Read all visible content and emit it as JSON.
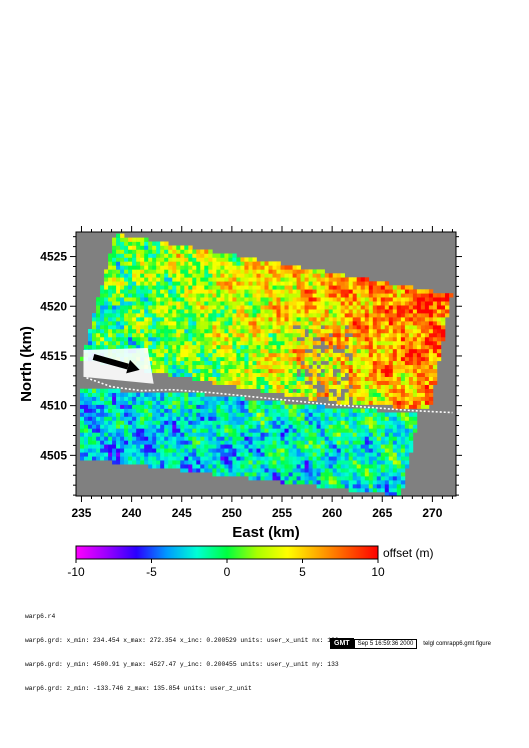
{
  "chart_data": {
    "type": "heatmap",
    "title": "",
    "xlabel": "East (km)",
    "ylabel": "North (km)",
    "xlim": [
      234.454,
      272.354
    ],
    "ylim": [
      4500.91,
      4527.47
    ],
    "xticks": [
      235,
      240,
      245,
      250,
      255,
      260,
      265,
      270
    ],
    "yticks": [
      4505,
      4510,
      4515,
      4520,
      4525
    ],
    "x_tick_labels": [
      "235",
      "240",
      "245",
      "250",
      "255",
      "260",
      "265",
      "270"
    ],
    "y_tick_labels": [
      "4505",
      "4510",
      "4515",
      "4520",
      "4525"
    ],
    "grid": false,
    "fault_trace": {
      "x": [
        235.5,
        238,
        241,
        244,
        248,
        252,
        256,
        260,
        264,
        268,
        272
      ],
      "y": [
        4512.8,
        4511.9,
        4511.5,
        4511.6,
        4511.3,
        4510.9,
        4510.5,
        4510.1,
        4509.8,
        4509.5,
        4509.3
      ]
    },
    "arrow": {
      "from": [
        236.2,
        4514.9
      ],
      "to": [
        240.8,
        4513.6
      ]
    },
    "colorbar": {
      "label": "offset (m)",
      "vmin": -10,
      "vmax": 10,
      "ticks": [
        -10,
        -5,
        0,
        5,
        10
      ],
      "tick_labels": [
        "-10",
        "-5",
        "0",
        "5",
        "10"
      ],
      "colors": [
        "#ff00ff",
        "#9d00ff",
        "#2a00ff",
        "#0099ff",
        "#00ffd5",
        "#00ff40",
        "#aaff00",
        "#ffff00",
        "#ffaa00",
        "#ff5500",
        "#ff0000"
      ]
    }
  },
  "info": {
    "lines": [
      "warp6.r4",
      "warp6.grd: x_min: 234.454 x_max: 272.354 x_inc: 0.200529 units: user_x_unit nx: 190",
      "warp6.grd: y_min: 4500.91 y_max: 4527.47 y_inc: 0.200455 units: user_y_unit ny: 133",
      "warp6.grd: z_min: -133.746 z_max: 135.854 units: user_z_unit"
    ]
  },
  "stamp": {
    "gmt": "GMT",
    "date": "Sep 5 16:59:36 2000",
    "command": "telgl comrapp6.gmt figure"
  },
  "colors": {
    "background_fill": "#808080",
    "fault_trace": "#ffffff",
    "arrow": "#000000"
  }
}
